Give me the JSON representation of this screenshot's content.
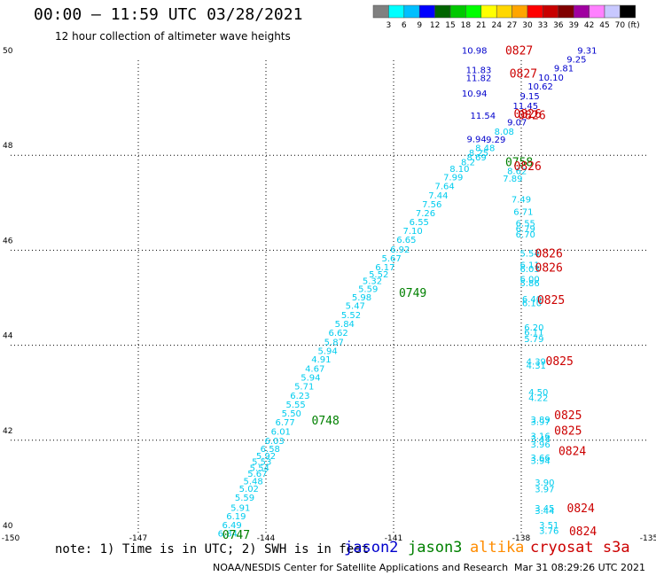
{
  "header": {
    "title": "00:00 – 11:59 UTC 03/28/2021",
    "subtitle": "12 hour collection of altimeter wave heights"
  },
  "colorbar": {
    "unit_label": "(ft)",
    "ticks": [
      "3",
      "6",
      "9",
      "12",
      "15",
      "18",
      "21",
      "24",
      "27",
      "30",
      "33",
      "36",
      "39",
      "42",
      "45",
      "70"
    ],
    "colors": [
      "#808080",
      "#00ffff",
      "#00bfff",
      "#0000ff",
      "#006400",
      "#00c800",
      "#00ff00",
      "#ffff00",
      "#ffd700",
      "#ffa500",
      "#ff0000",
      "#c80000",
      "#800000",
      "#a000a0",
      "#ff80ff",
      "#c8c8ff",
      "#000000"
    ]
  },
  "map": {
    "lon_labels": [
      "-150",
      "-147",
      "-144",
      "-141",
      "-138",
      "-135"
    ],
    "lat_labels": [
      "50",
      "48",
      "46",
      "44",
      "42",
      "40"
    ],
    "lon_min": -150,
    "lon_max": -135,
    "lat_min": 40,
    "lat_max": 50,
    "grid": "dotted"
  },
  "colors": {
    "jason2": "#0000cc",
    "jason3": "#008000",
    "altika": "#ff8c00",
    "cryosat": "#cc0000",
    "cyan_swh": "#00ccee",
    "blue_swh": "#0000cc"
  },
  "swh_labels": [
    {
      "v": "6.84",
      "lon": -144.9,
      "lat": 40.05,
      "c": "cyan"
    },
    {
      "v": "6.49",
      "lon": -144.8,
      "lat": 40.22,
      "c": "cyan"
    },
    {
      "v": "6.19",
      "lon": -144.7,
      "lat": 40.41,
      "c": "cyan"
    },
    {
      "v": "5.91",
      "lon": -144.6,
      "lat": 40.59,
      "c": "cyan"
    },
    {
      "v": "5.59",
      "lon": -144.5,
      "lat": 40.8,
      "c": "cyan"
    },
    {
      "v": "5.02",
      "lon": -144.4,
      "lat": 40.99,
      "c": "cyan"
    },
    {
      "v": "5.48",
      "lon": -144.3,
      "lat": 41.15,
      "c": "cyan"
    },
    {
      "v": "5.67",
      "lon": -144.2,
      "lat": 41.31,
      "c": "cyan"
    },
    {
      "v": "5.54",
      "lon": -144.15,
      "lat": 41.43,
      "c": "cyan"
    },
    {
      "v": "5.53",
      "lon": -144.1,
      "lat": 41.56,
      "c": "cyan"
    },
    {
      "v": "5.92",
      "lon": -144.0,
      "lat": 41.68,
      "c": "cyan"
    },
    {
      "v": "6.58",
      "lon": -143.9,
      "lat": 41.83,
      "c": "cyan"
    },
    {
      "v": "6.03",
      "lon": -143.8,
      "lat": 42.0,
      "c": "cyan"
    },
    {
      "v": "6.01",
      "lon": -143.65,
      "lat": 42.19,
      "c": "cyan"
    },
    {
      "v": "6.77",
      "lon": -143.55,
      "lat": 42.39,
      "c": "cyan"
    },
    {
      "v": "5.50",
      "lon": -143.4,
      "lat": 42.57,
      "c": "cyan"
    },
    {
      "v": "5.55",
      "lon": -143.3,
      "lat": 42.76,
      "c": "cyan"
    },
    {
      "v": "6.23",
      "lon": -143.2,
      "lat": 42.95,
      "c": "cyan"
    },
    {
      "v": "5.71",
      "lon": -143.1,
      "lat": 43.14,
      "c": "cyan"
    },
    {
      "v": "5.94",
      "lon": -142.95,
      "lat": 43.33,
      "c": "cyan"
    },
    {
      "v": "4.67",
      "lon": -142.85,
      "lat": 43.52,
      "c": "cyan"
    },
    {
      "v": "4.91",
      "lon": -142.7,
      "lat": 43.71,
      "c": "cyan"
    },
    {
      "v": "5.94",
      "lon": -142.55,
      "lat": 43.89,
      "c": "cyan"
    },
    {
      "v": "5.87",
      "lon": -142.4,
      "lat": 44.08,
      "c": "cyan"
    },
    {
      "v": "6.62",
      "lon": -142.3,
      "lat": 44.27,
      "c": "cyan"
    },
    {
      "v": "5.84",
      "lon": -142.15,
      "lat": 44.46,
      "c": "cyan"
    },
    {
      "v": "5.52",
      "lon": -142.0,
      "lat": 44.65,
      "c": "cyan"
    },
    {
      "v": "5.47",
      "lon": -141.9,
      "lat": 44.84,
      "c": "cyan"
    },
    {
      "v": "5.98",
      "lon": -141.75,
      "lat": 45.02,
      "c": "cyan"
    },
    {
      "v": "5.59",
      "lon": -141.6,
      "lat": 45.2,
      "c": "cyan"
    },
    {
      "v": "5.32",
      "lon": -141.5,
      "lat": 45.36,
      "c": "cyan"
    },
    {
      "v": "5.52",
      "lon": -141.35,
      "lat": 45.5,
      "c": "cyan"
    },
    {
      "v": "6.17",
      "lon": -141.2,
      "lat": 45.65,
      "c": "cyan"
    },
    {
      "v": "5.67",
      "lon": -141.05,
      "lat": 45.84,
      "c": "cyan"
    },
    {
      "v": "6.92",
      "lon": -140.85,
      "lat": 46.03,
      "c": "cyan"
    },
    {
      "v": "6.65",
      "lon": -140.7,
      "lat": 46.23,
      "c": "cyan"
    },
    {
      "v": "7.10",
      "lon": -140.55,
      "lat": 46.42,
      "c": "cyan"
    },
    {
      "v": "6.55",
      "lon": -140.4,
      "lat": 46.6,
      "c": "cyan"
    },
    {
      "v": "7.26",
      "lon": -140.25,
      "lat": 46.79,
      "c": "cyan"
    },
    {
      "v": "7.56",
      "lon": -140.1,
      "lat": 46.98,
      "c": "cyan"
    },
    {
      "v": "7.44",
      "lon": -139.95,
      "lat": 47.16,
      "c": "cyan"
    },
    {
      "v": "7.64",
      "lon": -139.8,
      "lat": 47.36,
      "c": "cyan"
    },
    {
      "v": "7.99",
      "lon": -139.6,
      "lat": 47.55,
      "c": "cyan"
    },
    {
      "v": "8.10",
      "lon": -139.45,
      "lat": 47.72,
      "c": "cyan"
    },
    {
      "v": "8.2",
      "lon": -139.25,
      "lat": 47.86,
      "c": "cyan"
    },
    {
      "v": "8.69",
      "lon": -139.05,
      "lat": 47.97,
      "c": "cyan"
    },
    {
      "v": "8.25",
      "lon": -139.0,
      "lat": 48.06,
      "c": "cyan"
    },
    {
      "v": "8.48",
      "lon": -138.85,
      "lat": 48.16,
      "c": "cyan"
    },
    {
      "v": "9.94",
      "lon": -139.05,
      "lat": 48.35,
      "c": "blue"
    },
    {
      "v": "9.29",
      "lon": -138.6,
      "lat": 48.34,
      "c": "blue"
    },
    {
      "v": "8.08",
      "lon": -138.4,
      "lat": 48.51,
      "c": "cyan"
    },
    {
      "v": "9.07",
      "lon": -138.1,
      "lat": 48.7,
      "c": "blue"
    },
    {
      "v": "11.54",
      "lon": -138.9,
      "lat": 48.84,
      "c": "blue"
    },
    {
      "v": "11.45",
      "lon": -137.9,
      "lat": 49.05,
      "c": "blue"
    },
    {
      "v": "9.15",
      "lon": -137.8,
      "lat": 49.25,
      "c": "blue"
    },
    {
      "v": "10.94",
      "lon": -139.1,
      "lat": 49.31,
      "c": "blue"
    },
    {
      "v": "10.62",
      "lon": -137.55,
      "lat": 49.46,
      "c": "blue"
    },
    {
      "v": "10.10",
      "lon": -137.3,
      "lat": 49.65,
      "c": "blue"
    },
    {
      "v": "9.81",
      "lon": -137.0,
      "lat": 49.84,
      "c": "blue"
    },
    {
      "v": "9.25",
      "lon": -136.7,
      "lat": 50.03,
      "c": "blue"
    },
    {
      "v": "9.31",
      "lon": -136.45,
      "lat": 50.21,
      "c": "blue"
    },
    {
      "v": "10.98",
      "lon": -139.1,
      "lat": 50.21,
      "c": "blue"
    },
    {
      "v": "11.83",
      "lon": -139.0,
      "lat": 49.8,
      "c": "blue"
    },
    {
      "v": "11.82",
      "lon": -139.0,
      "lat": 49.64,
      "c": "blue"
    },
    {
      "v": "7.89",
      "lon": -138.2,
      "lat": 47.52,
      "c": "cyan"
    },
    {
      "v": "8.62",
      "lon": -138.1,
      "lat": 47.68,
      "c": "cyan"
    },
    {
      "v": "7.49",
      "lon": -138.0,
      "lat": 47.08,
      "c": "cyan"
    },
    {
      "v": "6.71",
      "lon": -137.95,
      "lat": 46.82,
      "c": "cyan"
    },
    {
      "v": "6.55",
      "lon": -137.9,
      "lat": 46.58,
      "c": "cyan"
    },
    {
      "v": "6.79",
      "lon": -137.9,
      "lat": 46.46,
      "c": "cyan"
    },
    {
      "v": "6.70",
      "lon": -137.9,
      "lat": 46.34,
      "c": "cyan"
    },
    {
      "v": "5.54",
      "lon": -137.8,
      "lat": 45.94,
      "c": "cyan"
    },
    {
      "v": "6.11",
      "lon": -137.8,
      "lat": 45.7,
      "c": "cyan"
    },
    {
      "v": "6.03",
      "lon": -137.8,
      "lat": 45.62,
      "c": "cyan"
    },
    {
      "v": "6.00",
      "lon": -137.8,
      "lat": 45.4,
      "c": "cyan"
    },
    {
      "v": "5.86",
      "lon": -137.8,
      "lat": 45.32,
      "c": "cyan"
    },
    {
      "v": "6.40",
      "lon": -137.75,
      "lat": 44.98,
      "c": "cyan"
    },
    {
      "v": "6.10",
      "lon": -137.75,
      "lat": 44.9,
      "c": "cyan"
    },
    {
      "v": "6.20",
      "lon": -137.7,
      "lat": 44.38,
      "c": "cyan"
    },
    {
      "v": "6.11",
      "lon": -137.7,
      "lat": 44.28,
      "c": "cyan"
    },
    {
      "v": "5.79",
      "lon": -137.7,
      "lat": 44.14,
      "c": "cyan"
    },
    {
      "v": "4.39",
      "lon": -137.65,
      "lat": 43.67,
      "c": "cyan"
    },
    {
      "v": "4.31",
      "lon": -137.65,
      "lat": 43.58,
      "c": "cyan"
    },
    {
      "v": "4.50",
      "lon": -137.6,
      "lat": 43.02,
      "c": "cyan"
    },
    {
      "v": "4.22",
      "lon": -137.6,
      "lat": 42.9,
      "c": "cyan"
    },
    {
      "v": "3.89",
      "lon": -137.55,
      "lat": 42.44,
      "c": "cyan"
    },
    {
      "v": "3.97",
      "lon": -137.55,
      "lat": 42.4,
      "c": "cyan"
    },
    {
      "v": "3.16",
      "lon": -137.55,
      "lat": 42.1,
      "c": "cyan"
    },
    {
      "v": "3.44",
      "lon": -137.55,
      "lat": 42.03,
      "c": "cyan"
    },
    {
      "v": "3.96",
      "lon": -137.55,
      "lat": 41.92,
      "c": "cyan"
    },
    {
      "v": "3.66",
      "lon": -137.55,
      "lat": 41.64,
      "c": "cyan"
    },
    {
      "v": "3.94",
      "lon": -137.55,
      "lat": 41.58,
      "c": "cyan"
    },
    {
      "v": "3.90",
      "lon": -137.45,
      "lat": 41.12,
      "c": "cyan"
    },
    {
      "v": "3.97",
      "lon": -137.45,
      "lat": 40.98,
      "c": "cyan"
    },
    {
      "v": "3.45",
      "lon": -137.45,
      "lat": 40.58,
      "c": "cyan"
    },
    {
      "v": "3.44",
      "lon": -137.45,
      "lat": 40.52,
      "c": "cyan"
    },
    {
      "v": "3.51",
      "lon": -137.35,
      "lat": 40.22,
      "c": "cyan"
    },
    {
      "v": "3.76",
      "lon": -137.35,
      "lat": 40.1,
      "c": "cyan"
    }
  ],
  "time_labels": [
    {
      "t": "0827",
      "lon": -138.05,
      "lat": 50.21,
      "sat": "cryosat"
    },
    {
      "t": "0827",
      "lon": -137.95,
      "lat": 49.73,
      "sat": "cryosat"
    },
    {
      "t": "0826",
      "lon": -137.85,
      "lat": 48.88,
      "sat": "cryosat"
    },
    {
      "t": "0826",
      "lon": -137.75,
      "lat": 48.85,
      "sat": "cryosat"
    },
    {
      "t": "0758",
      "lon": -138.05,
      "lat": 47.86,
      "sat": "jason3"
    },
    {
      "t": "0826",
      "lon": -137.85,
      "lat": 47.78,
      "sat": "cryosat"
    },
    {
      "t": "0826",
      "lon": -137.35,
      "lat": 45.94,
      "sat": "cryosat"
    },
    {
      "t": "0826",
      "lon": -137.35,
      "lat": 45.64,
      "sat": "cryosat"
    },
    {
      "t": "0825",
      "lon": -137.3,
      "lat": 44.96,
      "sat": "cryosat"
    },
    {
      "t": "0749",
      "lon": -140.55,
      "lat": 45.11,
      "sat": "jason3"
    },
    {
      "t": "0825",
      "lon": -137.1,
      "lat": 43.68,
      "sat": "cryosat"
    },
    {
      "t": "0825",
      "lon": -136.9,
      "lat": 42.54,
      "sat": "cryosat"
    },
    {
      "t": "0825",
      "lon": -136.9,
      "lat": 42.21,
      "sat": "cryosat"
    },
    {
      "t": "0824",
      "lon": -136.8,
      "lat": 41.78,
      "sat": "cryosat"
    },
    {
      "t": "0748",
      "lon": -142.6,
      "lat": 42.43,
      "sat": "jason3"
    },
    {
      "t": "0824",
      "lon": -136.6,
      "lat": 40.58,
      "sat": "cryosat"
    },
    {
      "t": "0824",
      "lon": -136.55,
      "lat": 40.09,
      "sat": "cryosat"
    },
    {
      "t": "0747",
      "lon": -144.7,
      "lat": 40.02,
      "sat": "jason3"
    }
  ],
  "footer": {
    "note": "note: 1) Time is in UTC; 2) SWH is in feet",
    "sat_jason2": "jason2",
    "sat_jason3": "jason3",
    "sat_altika": "altika",
    "sat_cryosat": "cryosat s3a",
    "credit": "NOAA/NESDIS Center for Satellite Applications and Research",
    "stamp": "Mar 31 08:29:26 UTC 2021"
  }
}
